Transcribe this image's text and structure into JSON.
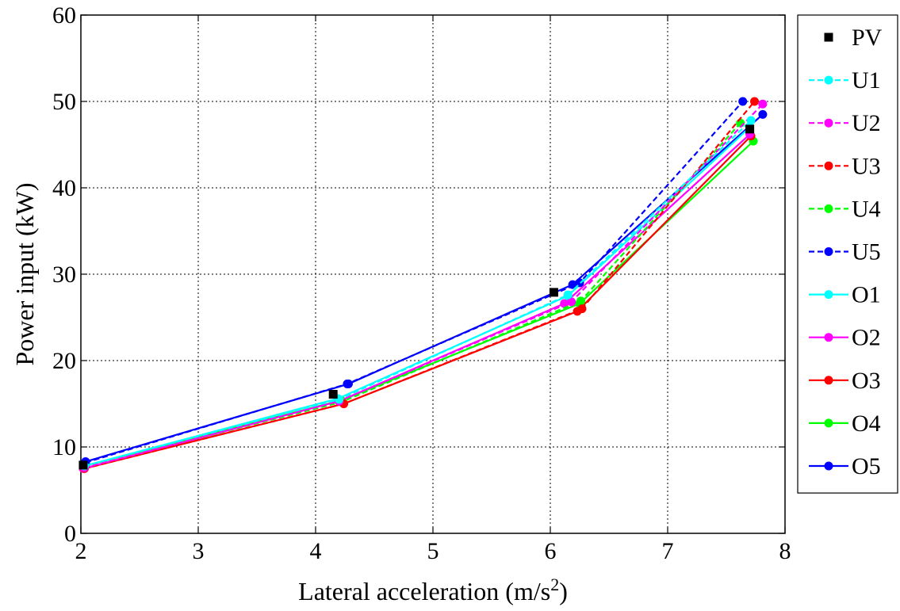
{
  "chart_data": {
    "type": "line",
    "xlabel": "Lateral acceleration (m/s",
    "xlabel_sup": "2",
    "xlabel_end": ")",
    "ylabel": "Power input (kW)",
    "xlim": [
      2,
      8
    ],
    "ylim": [
      0,
      60
    ],
    "xticks": [
      "2",
      "3",
      "4",
      "5",
      "6",
      "7",
      "8"
    ],
    "yticks": [
      "0",
      "10",
      "20",
      "30",
      "40",
      "50",
      "60"
    ],
    "grid": true,
    "legend_position": "outside-right",
    "series": [
      {
        "name": "PV",
        "color": "#000000",
        "line": "none",
        "marker": "square",
        "x": [
          2.02,
          4.15,
          6.03,
          7.7
        ],
        "y": [
          7.9,
          16.1,
          27.9,
          46.8
        ]
      },
      {
        "name": "U1",
        "color": "#00ffff",
        "line": "dashed",
        "marker": "circle",
        "x": [
          2.03,
          4.2,
          6.15,
          7.71
        ],
        "y": [
          7.8,
          15.5,
          27.6,
          47.8
        ]
      },
      {
        "name": "U2",
        "color": "#ff00ff",
        "line": "dashed",
        "marker": "circle",
        "x": [
          2.03,
          4.2,
          6.18,
          7.81
        ],
        "y": [
          7.6,
          15.3,
          26.8,
          49.7
        ]
      },
      {
        "name": "U3",
        "color": "#ff0000",
        "line": "dashed",
        "marker": "circle",
        "x": [
          2.03,
          4.24,
          6.27,
          7.74
        ],
        "y": [
          7.5,
          15.0,
          26.0,
          50.0
        ]
      },
      {
        "name": "U4",
        "color": "#00ff00",
        "line": "dashed",
        "marker": "circle",
        "x": [
          2.03,
          4.22,
          6.26,
          7.62
        ],
        "y": [
          7.7,
          15.2,
          26.9,
          47.5
        ]
      },
      {
        "name": "U5",
        "color": "#0000ff",
        "line": "dashed",
        "marker": "circle",
        "x": [
          2.04,
          4.27,
          6.25,
          7.64
        ],
        "y": [
          8.2,
          17.3,
          29.0,
          50.0
        ]
      },
      {
        "name": "O1",
        "color": "#00ffff",
        "line": "solid",
        "marker": "circle",
        "x": [
          2.03,
          4.19,
          6.15,
          7.7
        ],
        "y": [
          7.8,
          15.6,
          27.5,
          47.0
        ]
      },
      {
        "name": "O2",
        "color": "#ff00ff",
        "line": "solid",
        "marker": "circle",
        "x": [
          2.02,
          4.2,
          6.12,
          7.7
        ],
        "y": [
          7.5,
          15.3,
          26.6,
          46.2
        ]
      },
      {
        "name": "O3",
        "color": "#ff0000",
        "line": "solid",
        "marker": "circle",
        "x": [
          2.03,
          4.24,
          6.23,
          7.71
        ],
        "y": [
          7.5,
          15.0,
          25.7,
          46.0
        ]
      },
      {
        "name": "O4",
        "color": "#00ff00",
        "line": "solid",
        "marker": "circle",
        "x": [
          2.03,
          4.22,
          6.25,
          7.73
        ],
        "y": [
          7.8,
          15.4,
          26.6,
          45.4
        ]
      },
      {
        "name": "O5",
        "color": "#0000ff",
        "line": "solid",
        "marker": "circle",
        "x": [
          2.04,
          4.28,
          6.19,
          7.81
        ],
        "y": [
          8.3,
          17.3,
          28.8,
          48.5
        ]
      }
    ]
  }
}
